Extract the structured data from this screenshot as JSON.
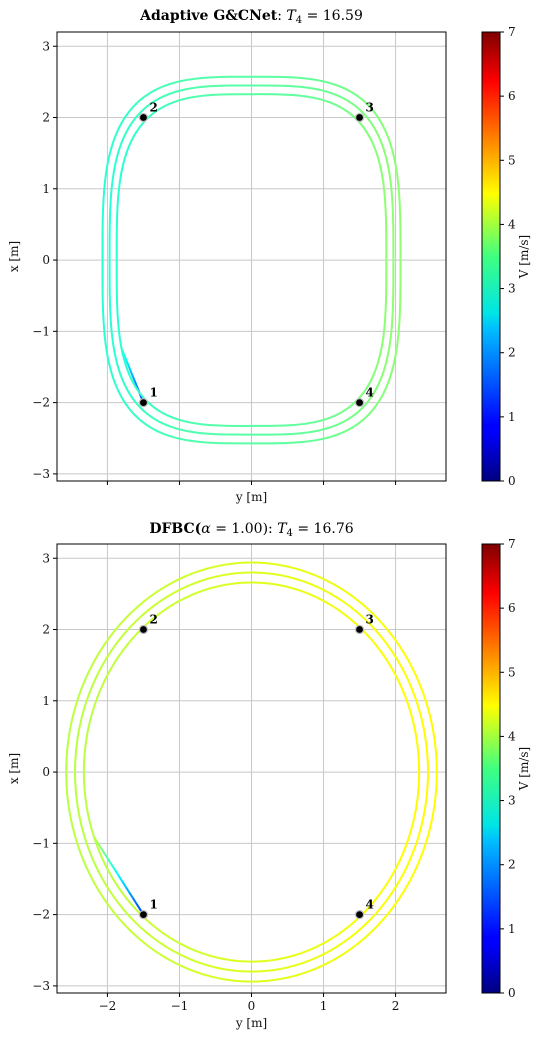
{
  "chart_data": [
    {
      "type": "line",
      "title_bold": "Adaptive G&CNet",
      "title_rest": ": ",
      "title_var": "T",
      "title_sub": "4",
      "title_val": " = 16.59",
      "xlabel": "y [m]",
      "ylabel": "x [m]",
      "xlim": [
        -2.7,
        2.7
      ],
      "ylim": [
        -3.1,
        3.2
      ],
      "xticks": [
        -2,
        -1,
        0,
        1,
        2
      ],
      "xtick_labels_shown": false,
      "yticks": [
        -3,
        -2,
        -1,
        0,
        1,
        2,
        3
      ],
      "ytick_labels": [
        "−3",
        "−2",
        "−1",
        "0",
        "1",
        "2",
        "3"
      ],
      "grid": true,
      "waypoints": [
        {
          "label": "1",
          "y": -1.5,
          "x": -2.0
        },
        {
          "label": "2",
          "y": -1.5,
          "x": 2.0
        },
        {
          "label": "3",
          "y": 1.5,
          "x": 2.0
        },
        {
          "label": "4",
          "y": 1.5,
          "x": -2.0
        }
      ],
      "trajectory": {
        "shape": "superellipse",
        "center_y": 0.0,
        "center_x": 0.0,
        "radius_y": 1.97,
        "radius_x": 2.45,
        "exponent": 3.4,
        "laps": 3,
        "lap_spread": 0.05,
        "start": {
          "y": -1.5,
          "x": -2.0
        },
        "velocity_start": 1.2,
        "velocity_range": [
          2.9,
          3.6
        ]
      },
      "colorbar": {
        "label": "V [m/s]",
        "min": 0,
        "max": 7,
        "ticks": [
          0,
          1,
          2,
          3,
          4,
          5,
          6,
          7
        ],
        "colormap": "jet"
      }
    },
    {
      "type": "line",
      "title_bold": "DFBC(",
      "title_alpha": "α",
      "title_alpha_val": " = 1.00)",
      "title_rest": ": ",
      "title_var": "T",
      "title_sub": "4",
      "title_val": " = 16.76",
      "xlabel": "y [m]",
      "ylabel": "x [m]",
      "xlim": [
        -2.7,
        2.7
      ],
      "ylim": [
        -3.1,
        3.2
      ],
      "xticks": [
        -2,
        -1,
        0,
        1,
        2
      ],
      "xtick_labels": [
        "−2",
        "−1",
        "0",
        "1",
        "2"
      ],
      "xtick_labels_shown": true,
      "yticks": [
        -3,
        -2,
        -1,
        0,
        1,
        2,
        3
      ],
      "ytick_labels": [
        "−3",
        "−2",
        "−1",
        "0",
        "1",
        "2",
        "3"
      ],
      "grid": true,
      "waypoints": [
        {
          "label": "1",
          "y": -1.5,
          "x": -2.0
        },
        {
          "label": "2",
          "y": -1.5,
          "x": 2.0
        },
        {
          "label": "3",
          "y": 1.5,
          "x": 2.0
        },
        {
          "label": "4",
          "y": 1.5,
          "x": -2.0
        }
      ],
      "trajectory": {
        "shape": "ellipse",
        "center_y": 0.0,
        "center_x": 0.0,
        "radius_y": 2.45,
        "radius_x": 2.8,
        "exponent": 2.0,
        "laps": 3,
        "lap_spread": 0.05,
        "start": {
          "y": -1.5,
          "x": -2.0
        },
        "velocity_start": 1.2,
        "velocity_range": [
          3.9,
          4.4
        ]
      },
      "colorbar": {
        "label": "V [m/s]",
        "min": 0,
        "max": 7,
        "ticks": [
          0,
          1,
          2,
          3,
          4,
          5,
          6,
          7
        ],
        "colormap": "jet"
      }
    }
  ]
}
